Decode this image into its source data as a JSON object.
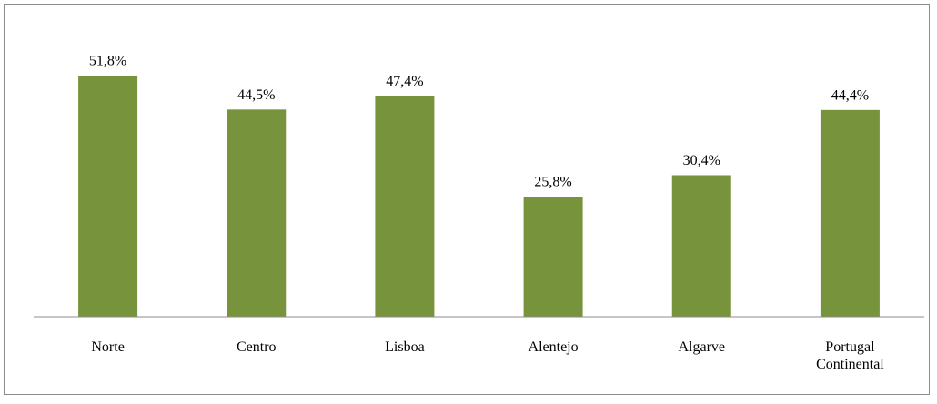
{
  "chart_data": {
    "type": "bar",
    "categories": [
      "Norte",
      "Centro",
      "Lisboa",
      "Alentejo",
      "Algarve",
      "Portugal Continental"
    ],
    "values": [
      51.8,
      44.5,
      47.4,
      25.8,
      30.4,
      44.4
    ],
    "value_labels": [
      "51,8%",
      "44,5%",
      "47,4%",
      "25,8%",
      "30,4%",
      "44,4%"
    ],
    "color": "#77933c"
  }
}
